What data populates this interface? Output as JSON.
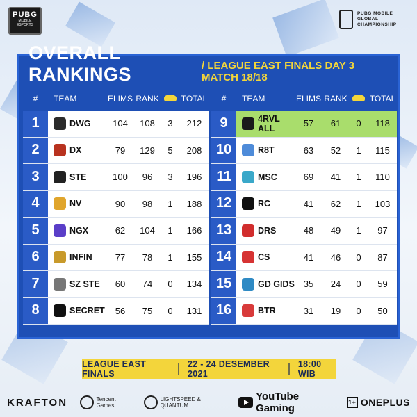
{
  "brand": {
    "pubg_big": "PUBG",
    "pubg_small": "MOBILE ESPORTS",
    "pmgc_lines": [
      "PUBG MOBILE",
      "GLOBAL",
      "CHAMPIONSHIP"
    ]
  },
  "title": {
    "main": "OVERALL RANKINGS",
    "sub": "/ LEAGUE EAST FINALS DAY 3 MATCH 18/18"
  },
  "headers": {
    "num": "#",
    "team": "TEAM",
    "elims": "ELIMS",
    "rank": "RANK",
    "total": "TOTAL"
  },
  "left_table": [
    {
      "num": "1",
      "team": "DWG",
      "elims": "104",
      "rank": "108",
      "chickens": "3",
      "total": "212",
      "logo_color": "#2b2b2b"
    },
    {
      "num": "2",
      "team": "DX",
      "elims": "79",
      "rank": "129",
      "chickens": "5",
      "total": "208",
      "logo_color": "#b8321f"
    },
    {
      "num": "3",
      "team": "STE",
      "elims": "100",
      "rank": "96",
      "chickens": "3",
      "total": "196",
      "logo_color": "#222"
    },
    {
      "num": "4",
      "team": "NV",
      "elims": "90",
      "rank": "98",
      "chickens": "1",
      "total": "188",
      "logo_color": "#e0a52c"
    },
    {
      "num": "5",
      "team": "NGX",
      "elims": "62",
      "rank": "104",
      "chickens": "1",
      "total": "166",
      "logo_color": "#5a3ec8"
    },
    {
      "num": "6",
      "team": "INFIN",
      "elims": "77",
      "rank": "78",
      "chickens": "1",
      "total": "155",
      "logo_color": "#c89a2b"
    },
    {
      "num": "7",
      "team": "SZ STE",
      "elims": "60",
      "rank": "74",
      "chickens": "0",
      "total": "134",
      "logo_color": "#777"
    },
    {
      "num": "8",
      "team": "SECRET",
      "elims": "56",
      "rank": "75",
      "chickens": "0",
      "total": "131",
      "logo_color": "#111"
    }
  ],
  "right_table": [
    {
      "num": "9",
      "team": "4RVL ALL",
      "elims": "57",
      "rank": "61",
      "chickens": "0",
      "total": "118",
      "logo_color": "#1a1a1a",
      "highlight": true
    },
    {
      "num": "10",
      "team": "R8T",
      "elims": "63",
      "rank": "52",
      "chickens": "1",
      "total": "115",
      "logo_color": "#4e8bd9"
    },
    {
      "num": "11",
      "team": "MSC",
      "elims": "69",
      "rank": "41",
      "chickens": "1",
      "total": "110",
      "logo_color": "#3aa8c9"
    },
    {
      "num": "12",
      "team": "RC",
      "elims": "41",
      "rank": "62",
      "chickens": "1",
      "total": "103",
      "logo_color": "#111"
    },
    {
      "num": "13",
      "team": "DRS",
      "elims": "48",
      "rank": "49",
      "chickens": "1",
      "total": "97",
      "logo_color": "#d12d2d"
    },
    {
      "num": "14",
      "team": "CS",
      "elims": "41",
      "rank": "46",
      "chickens": "0",
      "total": "87",
      "logo_color": "#d63333"
    },
    {
      "num": "15",
      "team": "GD GIDS",
      "elims": "35",
      "rank": "24",
      "chickens": "0",
      "total": "59",
      "logo_color": "#2f8ac4"
    },
    {
      "num": "16",
      "team": "BTR",
      "elims": "31",
      "rank": "19",
      "chickens": "0",
      "total": "50",
      "logo_color": "#d83a3a"
    }
  ],
  "banner": {
    "event": "LEAGUE EAST FINALS",
    "dates": "22 - 24 DESEMBER 2021",
    "time": "18:00 WIB"
  },
  "footer": {
    "krafton": "KRAFTON",
    "tencent": "Tencent Games",
    "lightspeed": "LIGHTSPEED & QUANTUM",
    "youtube": "YouTube Gaming",
    "oneplus": "ONEPLUS"
  }
}
